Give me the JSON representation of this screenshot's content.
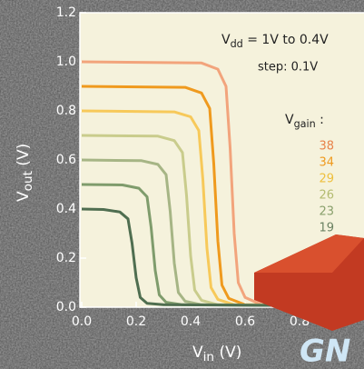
{
  "chart_data": {
    "type": "line",
    "xlabel": {
      "main": "V",
      "sub": "in",
      "rest": " (V)"
    },
    "ylabel": {
      "main": "V",
      "sub": "out",
      "rest": " (V)"
    },
    "annotations": {
      "vdd": {
        "main": "V",
        "sub": "dd",
        "rest": " = 1V to 0.4V"
      },
      "step": "step: 0.1V",
      "gain": {
        "main": "V",
        "sub": "gain",
        "rest": " :"
      }
    },
    "gain_labels": [
      {
        "text": "38",
        "color": "#e8824a"
      },
      {
        "text": "34",
        "color": "#ef9a1e"
      },
      {
        "text": "29",
        "color": "#eebf3c"
      },
      {
        "text": "26",
        "color": "#b3bb70"
      },
      {
        "text": "23",
        "color": "#89a06c"
      },
      {
        "text": "19",
        "color": "#6b8262"
      }
    ],
    "overlay_text": "GN",
    "xlim": [
      0,
      1.0
    ],
    "ylim": [
      0,
      1.2
    ],
    "xticks": [
      {
        "value": 0,
        "label": "0.0"
      },
      0.2,
      0.4,
      0.6,
      0.8
    ],
    "yticks": [
      {
        "value": 0,
        "label": "0.0"
      },
      0.2,
      0.4,
      0.6,
      0.8,
      {
        "value": 1.0,
        "label": "1.0"
      },
      1.2
    ],
    "series": [
      {
        "color": "#f2a47c",
        "x": [
          0,
          0.44,
          0.5,
          0.53,
          0.545,
          0.56,
          0.575,
          0.6,
          0.66,
          1.0
        ],
        "values": [
          1.0,
          0.995,
          0.97,
          0.9,
          0.65,
          0.3,
          0.1,
          0.04,
          0.01,
          0.005
        ]
      },
      {
        "color": "#ef9a1e",
        "x": [
          0,
          0.38,
          0.44,
          0.47,
          0.485,
          0.5,
          0.515,
          0.54,
          0.6,
          1.0
        ],
        "values": [
          0.9,
          0.896,
          0.873,
          0.81,
          0.585,
          0.27,
          0.09,
          0.036,
          0.01,
          0.005
        ]
      },
      {
        "color": "#f7c95a",
        "x": [
          0,
          0.34,
          0.4,
          0.43,
          0.445,
          0.46,
          0.475,
          0.5,
          0.56,
          1.0
        ],
        "values": [
          0.8,
          0.796,
          0.776,
          0.72,
          0.52,
          0.24,
          0.08,
          0.032,
          0.01,
          0.005
        ]
      },
      {
        "color": "#c9cc8c",
        "x": [
          0,
          0.28,
          0.34,
          0.37,
          0.385,
          0.4,
          0.415,
          0.44,
          0.5,
          1.0
        ],
        "values": [
          0.7,
          0.697,
          0.679,
          0.63,
          0.455,
          0.21,
          0.07,
          0.028,
          0.01,
          0.005
        ]
      },
      {
        "color": "#a6b585",
        "x": [
          0,
          0.22,
          0.28,
          0.31,
          0.325,
          0.34,
          0.355,
          0.38,
          0.44,
          1.0
        ],
        "values": [
          0.6,
          0.597,
          0.582,
          0.54,
          0.39,
          0.18,
          0.06,
          0.024,
          0.01,
          0.005
        ]
      },
      {
        "color": "#7f9c6c",
        "x": [
          0,
          0.15,
          0.21,
          0.24,
          0.255,
          0.27,
          0.285,
          0.31,
          0.37,
          1.0
        ],
        "values": [
          0.5,
          0.498,
          0.485,
          0.45,
          0.325,
          0.15,
          0.05,
          0.02,
          0.01,
          0.005
        ]
      },
      {
        "color": "#4f6e50",
        "x": [
          0,
          0.08,
          0.14,
          0.17,
          0.185,
          0.2,
          0.215,
          0.24,
          0.3,
          1.0
        ],
        "values": [
          0.4,
          0.398,
          0.388,
          0.36,
          0.26,
          0.12,
          0.04,
          0.016,
          0.01,
          0.005
        ]
      }
    ]
  }
}
